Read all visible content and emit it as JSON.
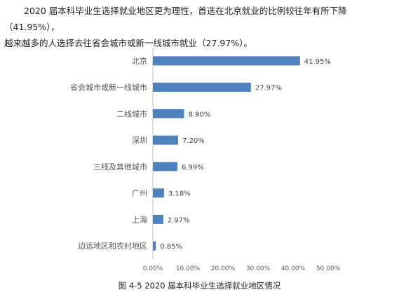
{
  "intro": {
    "line1": "2020 届本科毕业生选择就业地区更为理性，首选在北京就业的比例较往年有所下降（41.95%），",
    "line2": "越来越多的人选择去往省会城市或新一线城市就业（27.97%）。"
  },
  "caption": "图 4-5    2020 届本科毕业生选择就业地区情况",
  "colors": {
    "bar": "#4f81bd",
    "axis": "#bfbfbf",
    "label": "#555555"
  },
  "chart_data": {
    "type": "bar",
    "orientation": "horizontal",
    "categories": [
      "北京",
      "省会城市或新一线城市",
      "二线城市",
      "深圳",
      "三线及其他城市",
      "广州",
      "上海",
      "边远地区和农村地区"
    ],
    "values": [
      41.95,
      27.97,
      8.9,
      7.2,
      6.99,
      3.18,
      2.97,
      0.85
    ],
    "value_labels": [
      "41.95%",
      "27.97%",
      "8.90%",
      "7.20%",
      "6.99%",
      "3.18%",
      "2.97%",
      "0.85%"
    ],
    "xlim": [
      0,
      50
    ],
    "xticks": [
      "0.00%",
      "10.00%",
      "20.00%",
      "30.00%",
      "40.00%",
      "50.00%"
    ],
    "grid": false,
    "legend": "none"
  }
}
